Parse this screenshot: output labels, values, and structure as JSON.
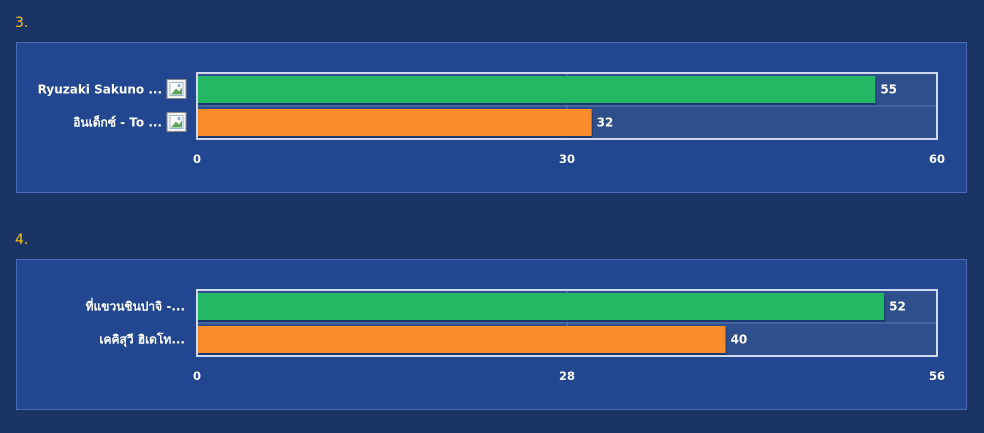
{
  "charts": [
    {
      "number": "3."
    },
    {
      "number": "4."
    }
  ],
  "chart_data": [
    {
      "type": "bar",
      "orientation": "horizontal",
      "categories": [
        "Ryuzaki Sakuno ...",
        "อินเด็กซ์ - To ..."
      ],
      "values": [
        55,
        32
      ],
      "bar_colors": [
        "#24b864",
        "#fb8c2b"
      ],
      "xlim": [
        0,
        60
      ],
      "xticks": [
        0,
        30,
        60
      ],
      "category_images": true,
      "grid": true
    },
    {
      "type": "bar",
      "orientation": "horizontal",
      "categories": [
        "ที่แขวนชินปาจิ -...",
        "เคคิสุวี ฮิเดโท..."
      ],
      "values": [
        52,
        40
      ],
      "bar_colors": [
        "#24b864",
        "#fb8c2b"
      ],
      "xlim": [
        0,
        56
      ],
      "xticks": [
        0,
        28,
        56
      ],
      "category_images": false,
      "grid": true
    }
  ],
  "colors": {
    "background": "#1b3466",
    "panel": "#22468f",
    "plot_area": "#2f4f8c",
    "number": "#f5c518"
  }
}
